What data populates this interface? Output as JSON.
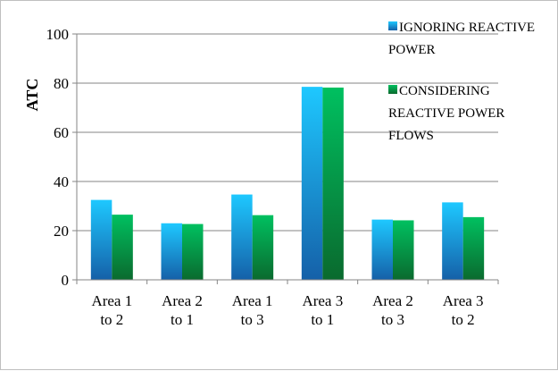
{
  "chart_data": {
    "type": "bar",
    "title": "",
    "xlabel": "",
    "ylabel": "ATC",
    "ylim": [
      0,
      100
    ],
    "yticks": [
      0,
      20,
      40,
      60,
      80,
      100
    ],
    "grid": true,
    "legend_position": "top-right",
    "categories": [
      [
        "Area 1",
        "to 2"
      ],
      [
        "Area 2",
        "to 1"
      ],
      [
        "Area 1",
        "to 3"
      ],
      [
        "Area 3",
        "to 1"
      ],
      [
        "Area 2",
        "to 3"
      ],
      [
        "Area 3",
        "to 2"
      ]
    ],
    "series": [
      {
        "name": [
          "IGNORING REACTIVE",
          "POWER"
        ],
        "values": [
          32.5,
          23,
          34.7,
          78.5,
          24.5,
          31.5
        ],
        "color_top": "#1ec8ff",
        "color_bottom": "#1560a8"
      },
      {
        "name": [
          "CONSIDERING",
          "REACTIVE POWER",
          "FLOWS"
        ],
        "values": [
          26.5,
          22.7,
          26.3,
          78.2,
          24.2,
          25.5
        ],
        "color_top": "#00c060",
        "color_bottom": "#0a6a2e"
      }
    ]
  }
}
